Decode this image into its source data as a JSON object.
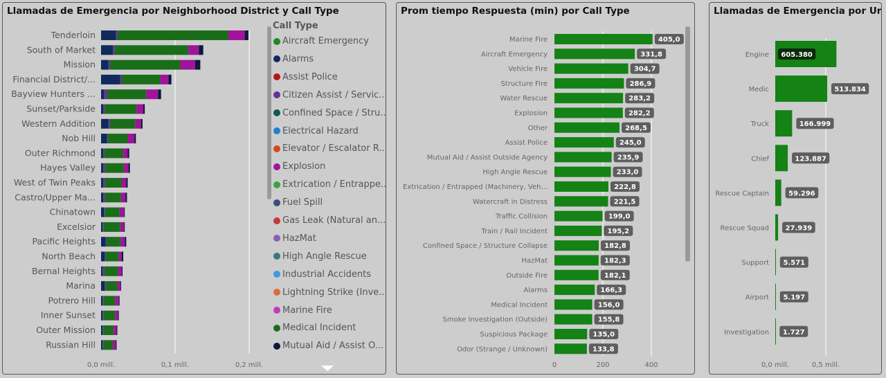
{
  "panels": {
    "p1_title": "Llamadas de Emergencia por Neighborhood  District y Call Type",
    "p2_title": "Prom tiempo Respuesta (min) por Call Type",
    "p3_title": "Llamadas de Emergencia por Unit ..."
  },
  "legend": {
    "title": "Call Type",
    "items": [
      {
        "label": "Aircraft Emergency",
        "color": "#1f8a1f"
      },
      {
        "label": "Alarms",
        "color": "#102a5c"
      },
      {
        "label": "Assist Police",
        "color": "#b01818"
      },
      {
        "label": "Citizen Assist / Servic...",
        "color": "#6a2d9e"
      },
      {
        "label": "Confined Space / Stru...",
        "color": "#0e5a52"
      },
      {
        "label": "Electrical Hazard",
        "color": "#1f7fd1"
      },
      {
        "label": "Elevator / Escalator R...",
        "color": "#d54a17"
      },
      {
        "label": "Explosion",
        "color": "#a0139a"
      },
      {
        "label": "Extrication / Entrappe...",
        "color": "#3fa03f"
      },
      {
        "label": "Fuel Spill",
        "color": "#3a4e78"
      },
      {
        "label": "Gas Leak (Natural an...",
        "color": "#c43a3a"
      },
      {
        "label": "HazMat",
        "color": "#8a5fb0"
      },
      {
        "label": "High Angle Rescue",
        "color": "#3a7a74"
      },
      {
        "label": "Industrial Accidents",
        "color": "#3d9be0"
      },
      {
        "label": "Lightning Strike (Inve...",
        "color": "#e06a40"
      },
      {
        "label": "Marine Fire",
        "color": "#c43ab8"
      },
      {
        "label": "Medical Incident",
        "color": "#1a6e1a"
      },
      {
        "label": "Mutual Aid / Assist O...",
        "color": "#0b1a3c"
      }
    ]
  },
  "chart_data": [
    {
      "type": "bar",
      "orientation": "horizontal-stacked",
      "title": "Llamadas de Emergencia por Neighborhood  District y Call Type",
      "categories": [
        "Tenderloin",
        "South of Market",
        "Mission",
        "Financial District/...",
        "Bayview Hunters ...",
        "Sunset/Parkside",
        "Western Addition",
        "Nob Hill",
        "Outer Richmond",
        "Hayes Valley",
        "West of Twin Peaks",
        "Castro/Upper Ma...",
        "Chinatown",
        "Excelsior",
        "Pacific Heights",
        "North Beach",
        "Bernal Heights",
        "Marina",
        "Potrero Hill",
        "Inner Sunset",
        "Outer Mission",
        "Russian Hill"
      ],
      "series": [
        {
          "name": "Alarms",
          "color": "#102a5c",
          "values": [
            0.02,
            0.016,
            0.01,
            0.026,
            0.004,
            0.003,
            0.01,
            0.008,
            0.003,
            0.003,
            0.003,
            0.003,
            0.004,
            0.002,
            0.006,
            0.005,
            0.002,
            0.005,
            0.002,
            0.002,
            0.002,
            0.002
          ]
        },
        {
          "name": "Citizen Assist / Servic...",
          "color": "#6a2d9e",
          "values": [
            0.002,
            0.002,
            0.002,
            0.002,
            0.004,
            0.002,
            0.002,
            0.001,
            0.001,
            0.002,
            0.002,
            0.002,
            0.001,
            0.001,
            0.001,
            0.001,
            0.002,
            0.001,
            0.001,
            0.001,
            0.001,
            0.001
          ]
        },
        {
          "name": "Medical Incident",
          "color": "#1a6e1a",
          "values": [
            0.15,
            0.1,
            0.095,
            0.052,
            0.053,
            0.043,
            0.034,
            0.027,
            0.026,
            0.026,
            0.023,
            0.022,
            0.02,
            0.023,
            0.019,
            0.018,
            0.019,
            0.016,
            0.016,
            0.016,
            0.014,
            0.013
          ]
        },
        {
          "name": "Explosion",
          "color": "#a0139a",
          "values": [
            0.022,
            0.014,
            0.02,
            0.011,
            0.016,
            0.009,
            0.008,
            0.009,
            0.006,
            0.006,
            0.006,
            0.006,
            0.006,
            0.005,
            0.006,
            0.004,
            0.005,
            0.004,
            0.005,
            0.004,
            0.004,
            0.004
          ]
        },
        {
          "name": "Mutual Aid / Assist O...",
          "color": "#0b1a3c",
          "values": [
            0.005,
            0.006,
            0.007,
            0.004,
            0.004,
            0.002,
            0.002,
            0.002,
            0.002,
            0.002,
            0.002,
            0.002,
            0.001,
            0.001,
            0.002,
            0.002,
            0.001,
            0.001,
            0.001,
            0.001,
            0.001,
            0.001
          ]
        }
      ],
      "xlabel": "",
      "ylabel": "",
      "xticks": [
        "0,0 mill.",
        "0,1 mill.",
        "0,2 mill."
      ],
      "xlim": [
        0,
        0.2
      ]
    },
    {
      "type": "bar",
      "orientation": "horizontal",
      "title": "Prom tiempo Respuesta (min) por Call Type",
      "categories": [
        "Marine Fire",
        "Aircraft Emergency",
        "Vehicle Fire",
        "Structure Fire",
        "Water Rescue",
        "Explosion",
        "Other",
        "Assist Police",
        "Mutual Aid / Assist Outside Agency",
        "High Angle Rescue",
        "Extrication / Entrapped (Machinery, Veh...",
        "Watercraft in Distress",
        "Traffic Collision",
        "Train / Rail Incident",
        "Confined Space / Structure Collapse",
        "HazMat",
        "Outside Fire",
        "Alarms",
        "Medical Incident",
        "Smoke Investigation (Outside)",
        "Suspicious Package",
        "Odor (Strange / Unknown)"
      ],
      "values": [
        405.0,
        331.8,
        304.7,
        286.9,
        283.2,
        282.2,
        268.5,
        245.0,
        235.9,
        233.0,
        222.8,
        221.5,
        199.0,
        195.2,
        182.8,
        182.3,
        182.1,
        166.3,
        156.0,
        155.8,
        135.0,
        133.8
      ],
      "labels": [
        "405,0",
        "331,8",
        "304,7",
        "286,9",
        "283,2",
        "282,2",
        "268,5",
        "245,0",
        "235,9",
        "233,0",
        "222,8",
        "221,5",
        "199,0",
        "195,2",
        "182,8",
        "182,3",
        "182,1",
        "166,3",
        "156,0",
        "155,8",
        "135,0",
        "133,8"
      ],
      "xticks": [
        "0",
        "200",
        "400"
      ],
      "xlim": [
        0,
        400
      ],
      "color": "#148214"
    },
    {
      "type": "bar",
      "orientation": "horizontal",
      "title": "Llamadas de Emergencia por Unit ...",
      "categories": [
        "Engine",
        "Medic",
        "Truck",
        "Chief",
        "Rescue Captain",
        "Rescue Squad",
        "Support",
        "Airport",
        "Investigation"
      ],
      "values": [
        605380,
        513834,
        166999,
        123887,
        59296,
        27939,
        5571,
        5197,
        1727
      ],
      "labels": [
        "605.380",
        "513.834",
        "166.999",
        "123.887",
        "59.296",
        "27.939",
        "5.571",
        "5.197",
        "1.727"
      ],
      "xticks": [
        "0,0 mill.",
        "0,5 mill."
      ],
      "xlim": [
        0,
        0.5
      ],
      "color": "#148214"
    }
  ]
}
